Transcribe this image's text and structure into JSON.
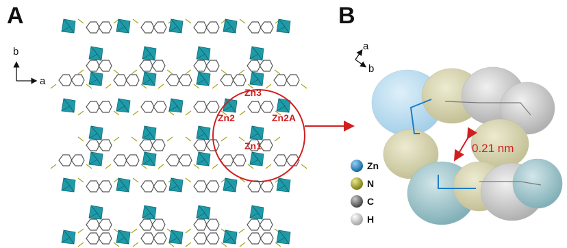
{
  "panels": {
    "a_letter": "A",
    "b_letter": "B"
  },
  "panel_a": {
    "axes": {
      "vertical": "b",
      "horizontal": "a"
    },
    "zn_labels": {
      "zn3": "Zn3",
      "zn2": "Zn2",
      "zn2a": "Zn2A",
      "zn1": "Zn1"
    }
  },
  "panel_b": {
    "axes": {
      "up": "a",
      "down": "b"
    },
    "distance": "0.21 nm",
    "legend": [
      {
        "label": "Zn",
        "color": "#2a87c8"
      },
      {
        "label": "N",
        "color": "#a5a52a"
      },
      {
        "label": "C",
        "color": "#6f6f6f"
      },
      {
        "label": "H",
        "color": "#c8c8c8"
      }
    ]
  },
  "colors": {
    "tetrahedron": "#1f9aa8",
    "bond": "#555555",
    "highlight": "#d01f1f"
  }
}
